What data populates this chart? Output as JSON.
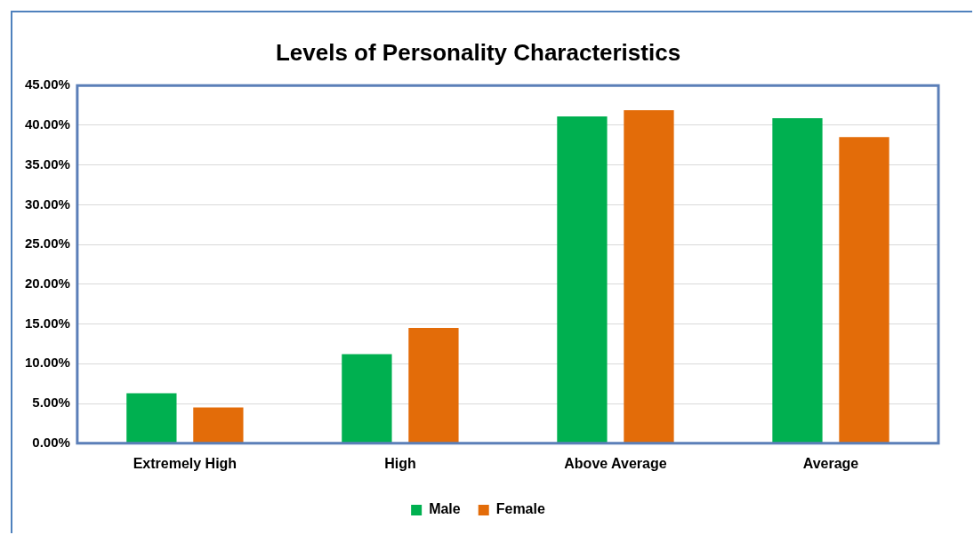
{
  "chart_data": {
    "type": "bar",
    "title": "Levels of Personality Characteristics",
    "categories": [
      "Extremely High",
      "High",
      "Above Average",
      "Average"
    ],
    "series": [
      {
        "name": "Male",
        "color": "#00b050",
        "values": [
          6.3,
          11.2,
          41.1,
          40.9
        ]
      },
      {
        "name": "Female",
        "color": "#e36c09",
        "values": [
          4.5,
          14.5,
          41.9,
          38.5
        ]
      }
    ],
    "ylim": [
      0,
      45
    ],
    "yticks": [
      {
        "value": 0,
        "label": "0.00%"
      },
      {
        "value": 5,
        "label": "5.00%"
      },
      {
        "value": 10,
        "label": "10.00%"
      },
      {
        "value": 15,
        "label": "15.00%"
      },
      {
        "value": 20,
        "label": "20.00%"
      },
      {
        "value": 25,
        "label": "25.00%"
      },
      {
        "value": 30,
        "label": "30.00%"
      },
      {
        "value": 35,
        "label": "35.00%"
      },
      {
        "value": 40,
        "label": "40.00%"
      },
      {
        "value": 45,
        "label": "45.00%"
      }
    ],
    "grid": "y",
    "legend": "bottom"
  }
}
